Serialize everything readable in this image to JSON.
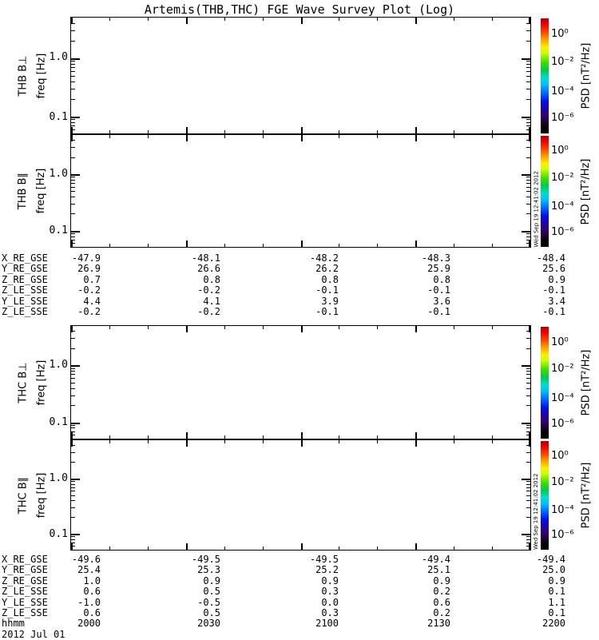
{
  "title": "Artemis(THB,THC) FGE Wave Survey Plot (Log)",
  "timestamp": "Wed Sep 19 12:41:02 2012",
  "colors": {
    "frame": "#000000",
    "background": "#ffffff",
    "colorbar_stops": [
      "#aa0000",
      "#ee0000",
      "#ff4400",
      "#ff9900",
      "#ffee00",
      "#ccff00",
      "#44dd00",
      "#00cc44",
      "#00ddcc",
      "#00bbff",
      "#0066ff",
      "#0011ee",
      "#2200aa",
      "#330077",
      "#220044",
      "#000000"
    ]
  },
  "panels": [
    {
      "group_label": "THB B⊥",
      "axis_label": "freq [Hz]",
      "ytick_labels": [
        "1.0",
        "0.1"
      ],
      "colorbar": {
        "tick_labels": [
          "10⁰",
          "10⁻²",
          "10⁻⁴",
          "10⁻⁶"
        ],
        "unit_label": "PSD [nT²/Hz]"
      }
    },
    {
      "group_label": "THB B∥",
      "axis_label": "freq [Hz]",
      "ytick_labels": [
        "1.0",
        "0.1"
      ],
      "colorbar": {
        "tick_labels": [
          "10⁰",
          "10⁻²",
          "10⁻⁴",
          "10⁻⁶"
        ],
        "unit_label": "PSD [nT²/Hz]"
      }
    },
    {
      "group_label": "THC B⊥",
      "axis_label": "freq [Hz]",
      "ytick_labels": [
        "1.0",
        "0.1"
      ],
      "colorbar": {
        "tick_labels": [
          "10⁰",
          "10⁻²",
          "10⁻⁴",
          "10⁻⁶"
        ],
        "unit_label": "PSD [nT²/Hz]"
      }
    },
    {
      "group_label": "THC B∥",
      "axis_label": "freq [Hz]",
      "ytick_labels": [
        "1.0",
        "0.1"
      ],
      "colorbar": {
        "tick_labels": [
          "10⁰",
          "10⁻²",
          "10⁻⁴",
          "10⁻⁶"
        ],
        "unit_label": "PSD [nT²/Hz]"
      }
    }
  ],
  "tables": [
    {
      "rows": [
        {
          "label": "X_RE_GSE",
          "values": [
            "-47.9",
            "-48.1",
            "-48.2",
            "-48.3",
            "-48.4"
          ]
        },
        {
          "label": "Y_RE_GSE",
          "values": [
            "26.9",
            "26.6",
            "26.2",
            "25.9",
            "25.6"
          ]
        },
        {
          "label": "Z_RE_GSE",
          "values": [
            "0.7",
            "0.8",
            "0.8",
            "0.8",
            "0.9"
          ]
        },
        {
          "label": "Z_LE_SSE",
          "values": [
            "-0.2",
            "-0.2",
            "-0.1",
            "-0.1",
            "-0.1"
          ]
        },
        {
          "label": "Y_LE_SSE",
          "values": [
            "4.4",
            "4.1",
            "3.9",
            "3.6",
            "3.4"
          ]
        },
        {
          "label": "Z_LE_SSE",
          "values": [
            "-0.2",
            "-0.2",
            "-0.1",
            "-0.1",
            "-0.1"
          ]
        }
      ]
    },
    {
      "rows": [
        {
          "label": "X_RE_GSE",
          "values": [
            "-49.6",
            "-49.5",
            "-49.5",
            "-49.4",
            "-49.4"
          ]
        },
        {
          "label": "Y_RE_GSE",
          "values": [
            "25.4",
            "25.3",
            "25.2",
            "25.1",
            "25.0"
          ]
        },
        {
          "label": "Z_RE_GSE",
          "values": [
            "1.0",
            "0.9",
            "0.9",
            "0.9",
            "0.9"
          ]
        },
        {
          "label": "Z_LE_SSE",
          "values": [
            "0.6",
            "0.5",
            "0.3",
            "0.2",
            "0.1"
          ]
        },
        {
          "label": "Y_LE_SSE",
          "values": [
            "-1.0",
            "-0.5",
            "0.0",
            "0.6",
            "1.1"
          ]
        },
        {
          "label": "Z_LE_SSE",
          "values": [
            "0.6",
            "0.5",
            "0.3",
            "0.2",
            "0.1"
          ]
        }
      ],
      "time_row": {
        "label": "hhmm",
        "values": [
          "2000",
          "2030",
          "2100",
          "2130",
          "2200"
        ]
      },
      "date_label": "2012 Jul 01"
    }
  ],
  "chart_data": {
    "type": "heatmap",
    "title": "Artemis(THB,THC) FGE Wave Survey Plot (Log)",
    "panels": [
      {
        "name": "THB B⊥",
        "ylabel": "freq [Hz]",
        "yscale": "log",
        "ytick_labels": [
          "1.0",
          "0.1"
        ],
        "ylim": [
          0.05,
          5
        ],
        "values": []
      },
      {
        "name": "THB B∥",
        "ylabel": "freq [Hz]",
        "yscale": "log",
        "ytick_labels": [
          "1.0",
          "0.1"
        ],
        "ylim": [
          0.05,
          5
        ],
        "values": []
      },
      {
        "name": "THC B⊥",
        "ylabel": "freq [Hz]",
        "yscale": "log",
        "ytick_labels": [
          "1.0",
          "0.1"
        ],
        "ylim": [
          0.05,
          5
        ],
        "values": []
      },
      {
        "name": "THC B∥",
        "ylabel": "freq [Hz]",
        "yscale": "log",
        "ytick_labels": [
          "1.0",
          "0.1"
        ],
        "ylim": [
          0.05,
          5
        ],
        "values": []
      }
    ],
    "x_axis": {
      "label": "hhmm",
      "tick_labels": [
        "2000",
        "2030",
        "2100",
        "2130",
        "2200"
      ],
      "date": "2012 Jul 01"
    },
    "colorbar": {
      "label": "PSD [nT²/Hz]",
      "scale": "log",
      "tick_labels": [
        "10⁰",
        "10⁻²",
        "10⁻⁴",
        "10⁻⁶"
      ]
    },
    "position_data": {
      "thb": [
        {
          "label": "X_RE_GSE",
          "values": [
            -47.9,
            -48.1,
            -48.2,
            -48.3,
            -48.4
          ]
        },
        {
          "label": "Y_RE_GSE",
          "values": [
            26.9,
            26.6,
            26.2,
            25.9,
            25.6
          ]
        },
        {
          "label": "Z_RE_GSE",
          "values": [
            0.7,
            0.8,
            0.8,
            0.8,
            0.9
          ]
        },
        {
          "label": "Z_LE_SSE",
          "values": [
            -0.2,
            -0.2,
            -0.1,
            -0.1,
            -0.1
          ]
        },
        {
          "label": "Y_LE_SSE",
          "values": [
            4.4,
            4.1,
            3.9,
            3.6,
            3.4
          ]
        },
        {
          "label": "Z_LE_SSE",
          "values": [
            -0.2,
            -0.2,
            -0.1,
            -0.1,
            -0.1
          ]
        }
      ],
      "thc": [
        {
          "label": "X_RE_GSE",
          "values": [
            -49.6,
            -49.5,
            -49.5,
            -49.4,
            -49.4
          ]
        },
        {
          "label": "Y_RE_GSE",
          "values": [
            25.4,
            25.3,
            25.2,
            25.1,
            25.0
          ]
        },
        {
          "label": "Z_RE_GSE",
          "values": [
            1.0,
            0.9,
            0.9,
            0.9,
            0.9
          ]
        },
        {
          "label": "Z_LE_SSE",
          "values": [
            0.6,
            0.5,
            0.3,
            0.2,
            0.1
          ]
        },
        {
          "label": "Y_LE_SSE",
          "values": [
            -1.0,
            -0.5,
            0.0,
            0.6,
            1.1
          ]
        },
        {
          "label": "Z_LE_SSE",
          "values": [
            0.6,
            0.5,
            0.3,
            0.2,
            0.1
          ]
        }
      ]
    }
  }
}
